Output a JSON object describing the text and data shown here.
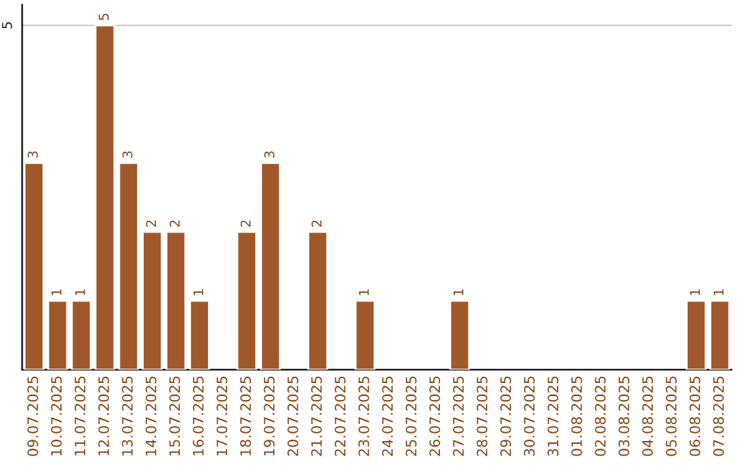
{
  "chart_data": {
    "type": "bar",
    "categories": [
      "09.07.2025",
      "10.07.2025",
      "11.07.2025",
      "12.07.2025",
      "13.07.2025",
      "14.07.2025",
      "15.07.2025",
      "16.07.2025",
      "17.07.2025",
      "18.07.2025",
      "19.07.2025",
      "20.07.2025",
      "21.07.2025",
      "22.07.2025",
      "23.07.2025",
      "24.07.2025",
      "25.07.2025",
      "26.07.2025",
      "27.07.2025",
      "28.07.2025",
      "29.07.2025",
      "30.07.2025",
      "31.07.2025",
      "01.08.2025",
      "02.08.2025",
      "03.08.2025",
      "04.08.2025",
      "05.08.2025",
      "06.08.2025",
      "07.08.2025"
    ],
    "values": [
      3,
      1,
      1,
      5,
      3,
      2,
      2,
      1,
      null,
      2,
      3,
      null,
      2,
      null,
      1,
      null,
      null,
      null,
      1,
      null,
      null,
      null,
      null,
      null,
      null,
      null,
      null,
      null,
      1,
      1
    ],
    "color": "#a0572a",
    "data_labels": true,
    "ylim": [
      0,
      5.3
    ],
    "yticks": [
      5
    ],
    "grid": "y"
  }
}
